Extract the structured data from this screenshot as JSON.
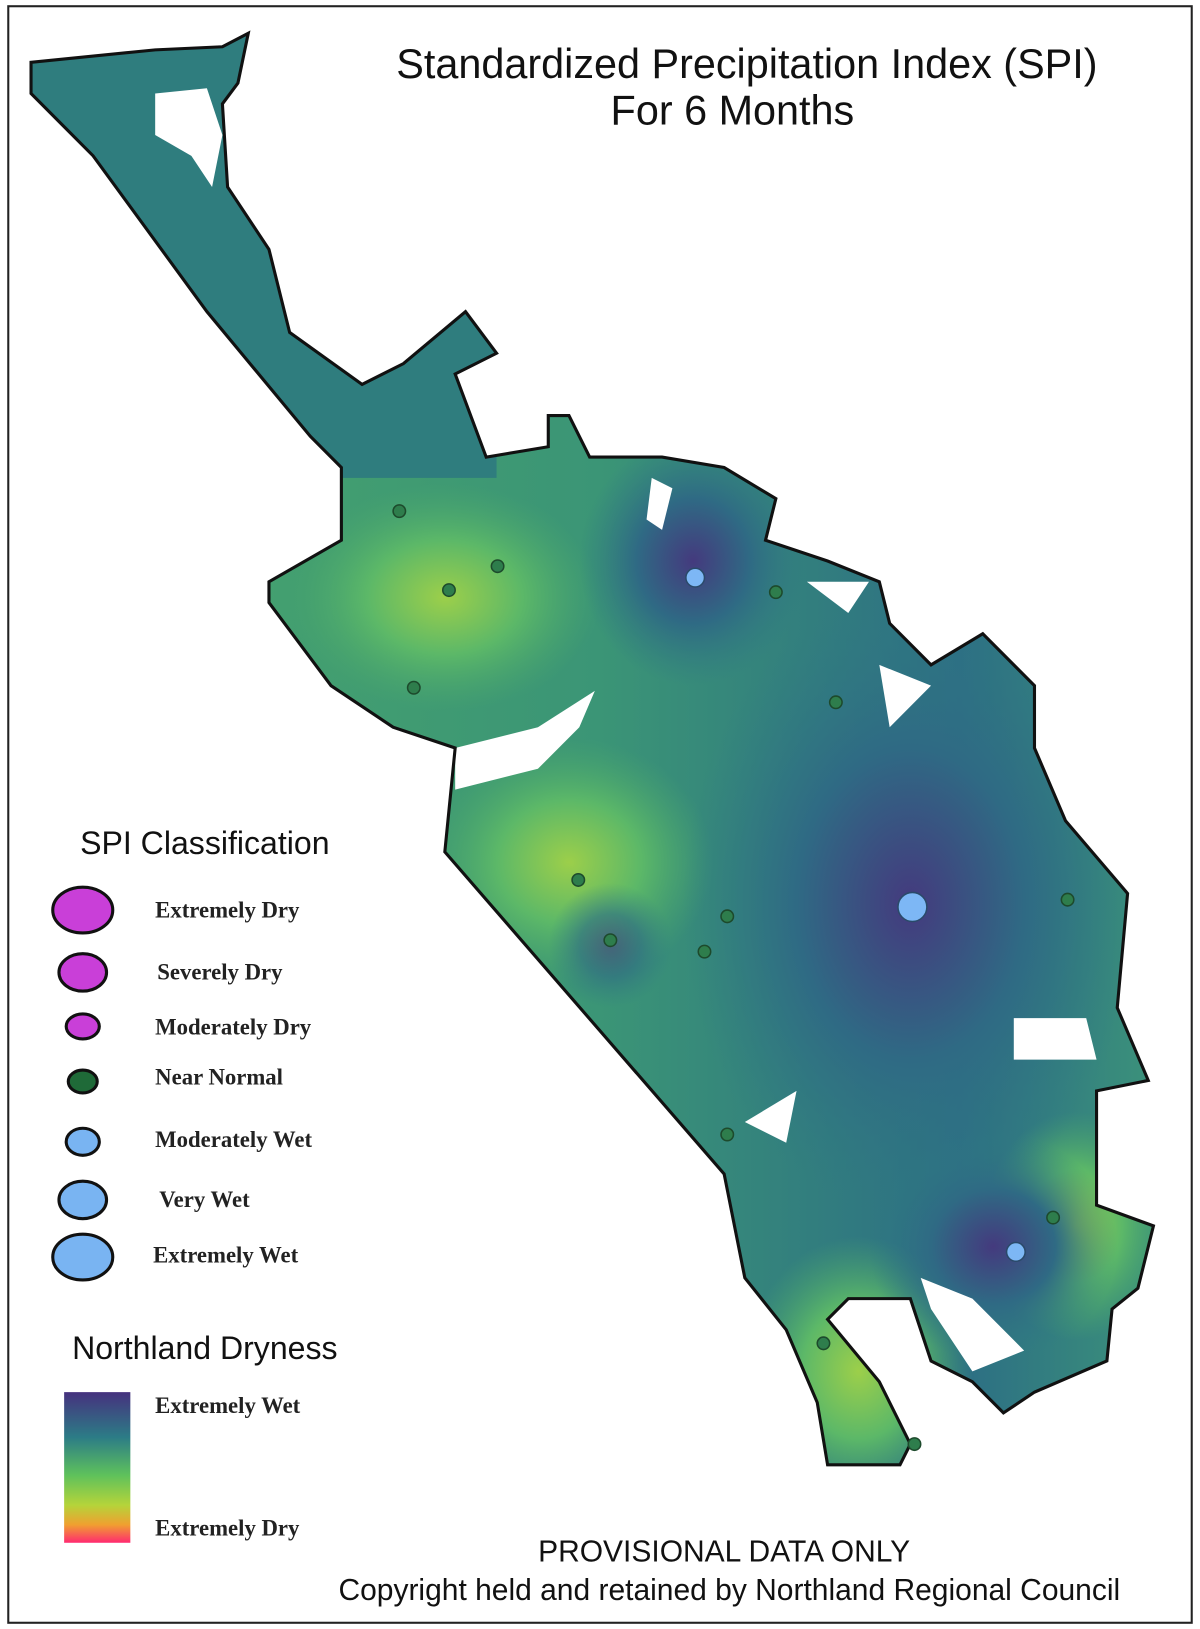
{
  "title": [
    "Standardized Precipitation Index (SPI)",
    "For 6 Months"
  ],
  "spi_legend": {
    "title": "SPI Classification",
    "items": [
      "Extremely Dry",
      "Severely Dry",
      "Moderately Dry",
      "Near Normal",
      "Moderately Wet",
      "Very Wet",
      "Extremely Wet"
    ]
  },
  "dryness_legend": {
    "title": "Northland Dryness",
    "labels": [
      "Extremely Wet",
      "Extremely Dry"
    ]
  },
  "footer": [
    "PROVISIONAL DATA ONLY",
    "Copyright held and retained by Northland Regional Council"
  ]
}
